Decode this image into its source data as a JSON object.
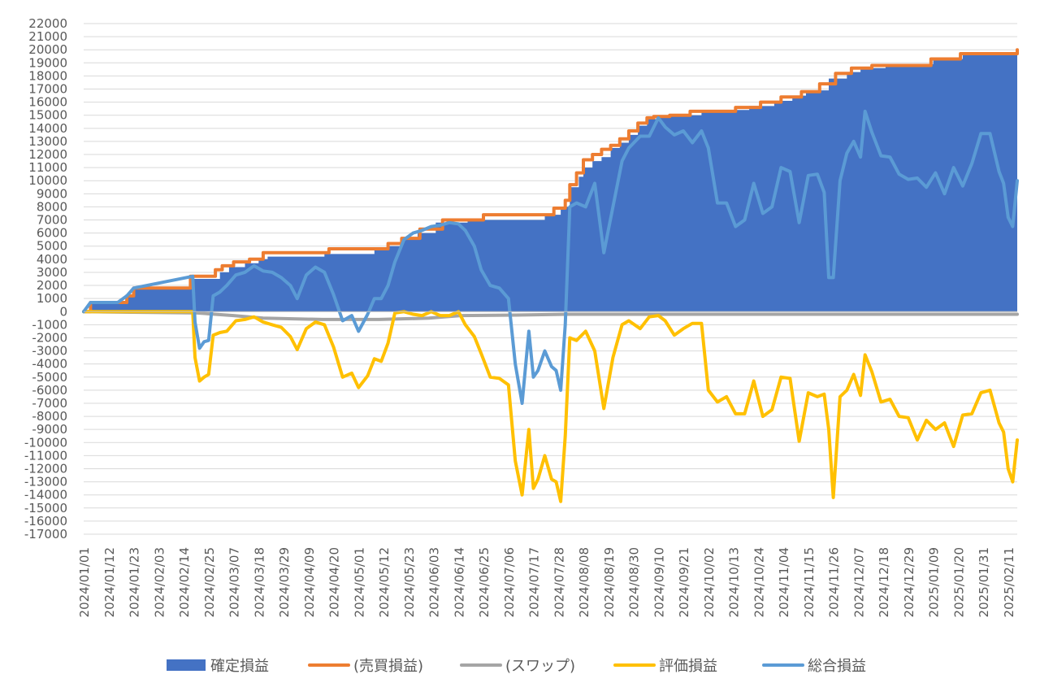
{
  "chart_data": {
    "type": "area",
    "title": "",
    "xlabel": "",
    "ylabel": "",
    "ylim": [
      -17000,
      22000
    ],
    "y_tick_step": 1000,
    "grid": true,
    "legend_position": "bottom",
    "x_range": [
      "2024/01/01",
      "2025/02/15"
    ],
    "x_tick_labels": [
      "2024/01/01",
      "2024/01/12",
      "2024/01/23",
      "2024/02/03",
      "2024/02/14",
      "2024/02/25",
      "2024/03/07",
      "2024/03/18",
      "2024/03/29",
      "2024/04/09",
      "2024/04/20",
      "2024/05/01",
      "2024/05/12",
      "2024/05/23",
      "2024/06/03",
      "2024/06/14",
      "2024/06/25",
      "2024/07/06",
      "2024/07/17",
      "2024/07/28",
      "2024/08/08",
      "2024/08/19",
      "2024/08/30",
      "2024/09/10",
      "2024/09/21",
      "2024/10/02",
      "2024/10/13",
      "2024/10/24",
      "2024/11/04",
      "2024/11/15",
      "2024/11/26",
      "2024/12/07",
      "2024/12/18",
      "2024/12/29",
      "2025/01/09",
      "2025/01/20",
      "2025/01/31",
      "2025/02/11"
    ],
    "series": [
      {
        "name": "確定損益",
        "kind": "area",
        "color": "#4472C4",
        "x": [
          "2024/01/01",
          "2024/01/04",
          "2024/01/16",
          "2024/01/20",
          "2024/01/23",
          "2024/02/17",
          "2024/02/20",
          "2024/03/01",
          "2024/03/05",
          "2024/03/12",
          "2024/03/18",
          "2024/03/22",
          "2024/04/15",
          "2024/04/16",
          "2024/05/08",
          "2024/05/14",
          "2024/05/20",
          "2024/05/27",
          "2024/06/04",
          "2024/06/18",
          "2024/07/14",
          "2024/07/22",
          "2024/07/29",
          "2024/08/02",
          "2024/08/06",
          "2024/08/08",
          "2024/08/12",
          "2024/08/16",
          "2024/08/20",
          "2024/08/24",
          "2024/08/28",
          "2024/09/01",
          "2024/09/05",
          "2024/09/09",
          "2024/09/15",
          "2024/09/29",
          "2024/10/20",
          "2024/10/31",
          "2024/11/08",
          "2024/11/14",
          "2024/11/24",
          "2024/12/02",
          "2024/12/08",
          "2024/12/19",
          "2025/01/09",
          "2025/01/22",
          "2025/02/15"
        ],
        "values": [
          0,
          700,
          700,
          1200,
          1800,
          2500,
          2500,
          3000,
          3400,
          3700,
          4000,
          4200,
          4200,
          4400,
          4700,
          5000,
          5600,
          6000,
          6800,
          7000,
          7000,
          7400,
          8000,
          9500,
          10300,
          11000,
          11500,
          11800,
          12500,
          12900,
          13500,
          14200,
          14700,
          14900,
          15000,
          15400,
          15700,
          16100,
          16500,
          16900,
          17800,
          18300,
          18600,
          18900,
          19300,
          19600,
          19700
        ]
      },
      {
        "name": "(売買損益)",
        "kind": "line",
        "color": "#ED7D31",
        "x": [
          "2024/01/01",
          "2024/01/04",
          "2024/01/16",
          "2024/01/20",
          "2024/01/23",
          "2024/02/17",
          "2024/02/28",
          "2024/03/02",
          "2024/03/07",
          "2024/03/14",
          "2024/03/20",
          "2024/04/06",
          "2024/04/18",
          "2024/05/06",
          "2024/05/14",
          "2024/05/20",
          "2024/05/28",
          "2024/06/07",
          "2024/06/25",
          "2024/07/18",
          "2024/07/26",
          "2024/07/31",
          "2024/08/02",
          "2024/08/05",
          "2024/08/08",
          "2024/08/12",
          "2024/08/16",
          "2024/08/20",
          "2024/08/24",
          "2024/08/28",
          "2024/09/01",
          "2024/09/05",
          "2024/09/08",
          "2024/09/15",
          "2024/09/24",
          "2024/10/14",
          "2024/10/25",
          "2024/11/03",
          "2024/11/12",
          "2024/11/20",
          "2024/11/27",
          "2024/12/04",
          "2024/12/13",
          "2025/01/08",
          "2025/01/21",
          "2025/02/14",
          "2025/02/15"
        ],
        "values": [
          0,
          700,
          700,
          1200,
          1800,
          2700,
          3200,
          3500,
          3800,
          4000,
          4500,
          4500,
          4800,
          4800,
          5200,
          5600,
          6300,
          7000,
          7400,
          7400,
          7900,
          8500,
          9700,
          10600,
          11600,
          12000,
          12400,
          12700,
          13200,
          13800,
          14400,
          14800,
          14900,
          15000,
          15300,
          15600,
          16000,
          16400,
          16800,
          17400,
          18200,
          18600,
          18800,
          19300,
          19700,
          19700,
          20000
        ]
      },
      {
        "name": "(スワップ)",
        "kind": "line",
        "color": "#A5A5A5",
        "x": [
          "2024/01/01",
          "2024/02/20",
          "2024/03/07",
          "2024/03/20",
          "2024/04/15",
          "2024/05/10",
          "2024/06/01",
          "2024/06/15",
          "2024/07/15",
          "2024/08/01",
          "2024/09/01",
          "2024/10/01",
          "2024/11/01",
          "2024/12/01",
          "2025/01/01",
          "2025/02/15"
        ],
        "values": [
          0,
          -100,
          -300,
          -500,
          -600,
          -600,
          -500,
          -300,
          -250,
          -200,
          -200,
          -200,
          -200,
          -200,
          -200,
          -200
        ]
      },
      {
        "name": "評価損益",
        "kind": "line",
        "color": "#FFC000",
        "x": [
          "2024/01/01",
          "2024/02/18",
          "2024/02/19",
          "2024/02/21",
          "2024/02/23",
          "2024/02/25",
          "2024/02/27",
          "2024/03/01",
          "2024/03/04",
          "2024/03/08",
          "2024/03/12",
          "2024/03/16",
          "2024/03/20",
          "2024/03/24",
          "2024/03/28",
          "2024/04/01",
          "2024/04/04",
          "2024/04/08",
          "2024/04/12",
          "2024/04/16",
          "2024/04/20",
          "2024/04/24",
          "2024/04/28",
          "2024/05/01",
          "2024/05/05",
          "2024/05/08",
          "2024/05/11",
          "2024/05/14",
          "2024/05/17",
          "2024/05/21",
          "2024/05/25",
          "2024/05/29",
          "2024/06/02",
          "2024/06/06",
          "2024/06/10",
          "2024/06/14",
          "2024/06/17",
          "2024/06/21",
          "2024/06/24",
          "2024/06/28",
          "2024/07/02",
          "2024/07/06",
          "2024/07/09",
          "2024/07/12",
          "2024/07/15",
          "2024/07/17",
          "2024/07/19",
          "2024/07/22",
          "2024/07/25",
          "2024/07/27",
          "2024/07/29",
          "2024/07/31",
          "2024/08/02",
          "2024/08/05",
          "2024/08/09",
          "2024/08/13",
          "2024/08/17",
          "2024/08/21",
          "2024/08/25",
          "2024/08/28",
          "2024/09/02",
          "2024/09/06",
          "2024/09/10",
          "2024/09/13",
          "2024/09/17",
          "2024/09/21",
          "2024/09/25",
          "2024/09/29",
          "2024/10/02",
          "2024/10/06",
          "2024/10/10",
          "2024/10/14",
          "2024/10/18",
          "2024/10/22",
          "2024/10/26",
          "2024/10/30",
          "2024/11/03",
          "2024/11/07",
          "2024/11/11",
          "2024/11/15",
          "2024/11/19",
          "2024/11/22",
          "2024/11/24",
          "2024/11/26",
          "2024/11/29",
          "2024/12/02",
          "2024/12/05",
          "2024/12/08",
          "2024/12/10",
          "2024/12/13",
          "2024/12/17",
          "2024/12/21",
          "2024/12/25",
          "2024/12/29",
          "2025/01/02",
          "2025/01/06",
          "2025/01/10",
          "2025/01/14",
          "2025/01/18",
          "2025/01/22",
          "2025/01/26",
          "2025/01/30",
          "2025/02/03",
          "2025/02/07",
          "2025/02/09",
          "2025/02/11",
          "2025/02/13",
          "2025/02/15"
        ],
        "values": [
          0,
          0,
          -3500,
          -5300,
          -5000,
          -4800,
          -1800,
          -1600,
          -1500,
          -700,
          -600,
          -400,
          -800,
          -1000,
          -1200,
          -1900,
          -2900,
          -1300,
          -800,
          -1000,
          -2700,
          -5000,
          -4700,
          -5800,
          -4900,
          -3600,
          -3800,
          -2400,
          -100,
          0,
          -200,
          -300,
          0,
          -300,
          -300,
          0,
          -1000,
          -1900,
          -3200,
          -5000,
          -5100,
          -5600,
          -11400,
          -14000,
          -9000,
          -13500,
          -12800,
          -11000,
          -12800,
          -13000,
          -14500,
          -9500,
          -2000,
          -2200,
          -1500,
          -3000,
          -7400,
          -3500,
          -1000,
          -700,
          -1300,
          -400,
          -300,
          -700,
          -1800,
          -1300,
          -900,
          -900,
          -6000,
          -6900,
          -6500,
          -7800,
          -7800,
          -5300,
          -8000,
          -7500,
          -5000,
          -5100,
          -9900,
          -6200,
          -6500,
          -6300,
          -9000,
          -14200,
          -6500,
          -6000,
          -4800,
          -6400,
          -3300,
          -4600,
          -6900,
          -6700,
          -8000,
          -8100,
          -9800,
          -8300,
          -9000,
          -8500,
          -10300,
          -7900,
          -7800,
          -6200,
          -6000,
          -8500,
          -9200,
          -12000,
          -13000,
          -9800
        ]
      },
      {
        "name": "総合損益",
        "kind": "line",
        "color": "#5B9BD5",
        "x": [
          "2024/01/01",
          "2024/01/04",
          "2024/01/16",
          "2024/01/20",
          "2024/01/23",
          "2024/02/18",
          "2024/02/19",
          "2024/02/21",
          "2024/02/23",
          "2024/02/25",
          "2024/02/27",
          "2024/03/01",
          "2024/03/04",
          "2024/03/08",
          "2024/03/12",
          "2024/03/16",
          "2024/03/20",
          "2024/03/24",
          "2024/03/28",
          "2024/04/01",
          "2024/04/04",
          "2024/04/08",
          "2024/04/12",
          "2024/04/16",
          "2024/04/20",
          "2024/04/24",
          "2024/04/28",
          "2024/05/01",
          "2024/05/05",
          "2024/05/08",
          "2024/05/11",
          "2024/05/14",
          "2024/05/17",
          "2024/05/21",
          "2024/05/25",
          "2024/05/29",
          "2024/06/02",
          "2024/06/06",
          "2024/06/10",
          "2024/06/14",
          "2024/06/17",
          "2024/06/21",
          "2024/06/24",
          "2024/06/28",
          "2024/07/02",
          "2024/07/06",
          "2024/07/09",
          "2024/07/12",
          "2024/07/15",
          "2024/07/17",
          "2024/07/19",
          "2024/07/22",
          "2024/07/25",
          "2024/07/27",
          "2024/07/29",
          "2024/07/31",
          "2024/08/02",
          "2024/08/05",
          "2024/08/09",
          "2024/08/13",
          "2024/08/17",
          "2024/08/21",
          "2024/08/25",
          "2024/08/28",
          "2024/09/02",
          "2024/09/06",
          "2024/09/10",
          "2024/09/13",
          "2024/09/17",
          "2024/09/21",
          "2024/09/25",
          "2024/09/29",
          "2024/10/02",
          "2024/10/06",
          "2024/10/10",
          "2024/10/14",
          "2024/10/18",
          "2024/10/22",
          "2024/10/26",
          "2024/10/30",
          "2024/11/03",
          "2024/11/07",
          "2024/11/11",
          "2024/11/15",
          "2024/11/19",
          "2024/11/22",
          "2024/11/24",
          "2024/11/26",
          "2024/11/29",
          "2024/12/02",
          "2024/12/05",
          "2024/12/08",
          "2024/12/10",
          "2024/12/13",
          "2024/12/17",
          "2024/12/21",
          "2024/12/25",
          "2024/12/29",
          "2025/01/02",
          "2025/01/06",
          "2025/01/10",
          "2025/01/14",
          "2025/01/18",
          "2025/01/22",
          "2025/01/26",
          "2025/01/30",
          "2025/02/03",
          "2025/02/07",
          "2025/02/09",
          "2025/02/11",
          "2025/02/13",
          "2025/02/15"
        ],
        "values": [
          0,
          700,
          700,
          1200,
          1800,
          2700,
          -800,
          -2800,
          -2300,
          -2200,
          1200,
          1500,
          2000,
          2800,
          3000,
          3500,
          3100,
          3000,
          2600,
          2000,
          1000,
          2800,
          3400,
          3000,
          1300,
          -700,
          -300,
          -1500,
          -200,
          1000,
          1000,
          2000,
          3800,
          5500,
          6000,
          6200,
          6500,
          6600,
          6800,
          6700,
          6200,
          5000,
          3200,
          2000,
          1800,
          1000,
          -4000,
          -7000,
          -1500,
          -5000,
          -4500,
          -3000,
          -4200,
          -4500,
          -6000,
          -1000,
          8000,
          8300,
          8000,
          9800,
          4500,
          8000,
          11500,
          12500,
          13400,
          13400,
          14800,
          14100,
          13500,
          13800,
          12900,
          13800,
          12500,
          8300,
          8300,
          6500,
          7000,
          9800,
          7500,
          8000,
          11000,
          10700,
          6800,
          10400,
          10500,
          9100,
          2600,
          2600,
          10000,
          12100,
          13000,
          11800,
          15300,
          13700,
          11900,
          11800,
          10500,
          10100,
          10200,
          9500,
          10600,
          9000,
          11000,
          9600,
          11300,
          13600,
          13600,
          10700,
          9800,
          7200,
          6500,
          10000
        ]
      }
    ]
  }
}
